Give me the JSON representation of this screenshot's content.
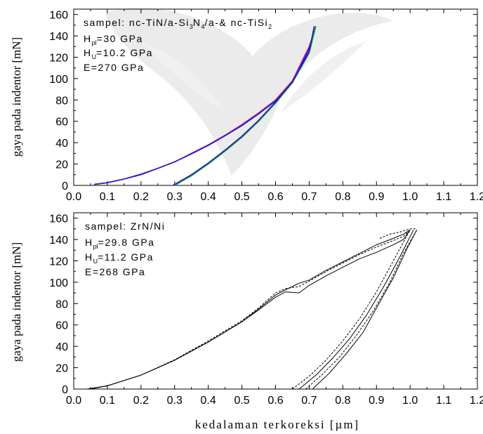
{
  "chart_data": [
    {
      "type": "line",
      "ylabel": "gaya pada indentor [mN]",
      "xlim": [
        0.0,
        1.2
      ],
      "ylim": [
        0,
        165
      ],
      "x_ticks": [
        "0.0",
        "0.1",
        "0.2",
        "0.3",
        "0.4",
        "0.5",
        "0.6",
        "0.7",
        "0.8",
        "0.9",
        "1.0",
        "1.1",
        "1.2"
      ],
      "y_ticks": [
        "0",
        "20",
        "40",
        "60",
        "80",
        "100",
        "120",
        "140",
        "160"
      ],
      "annotation": {
        "line1": "sampel: nc-TiN/a-Si",
        "sub1": "3",
        "line1b": "N",
        "sub2": "4",
        "line1c": "/a-& nc-TiSi",
        "sub3": "2",
        "h_pl_main": "H",
        "h_pl_sub": "pl",
        "h_pl_value": "=30 GPa",
        "h_u_main": "H",
        "h_u_sub": "U",
        "h_u_value": "=10.2 GPa",
        "e_value": "E=270 GPa"
      },
      "series": [
        {
          "color": "#cc2299",
          "x": [
            0.065,
            0.1,
            0.15,
            0.2,
            0.25,
            0.3,
            0.35,
            0.4,
            0.45,
            0.5,
            0.55,
            0.6,
            0.65,
            0.7,
            0.72
          ],
          "y": [
            1,
            2.5,
            6,
            10,
            16,
            22,
            30,
            38,
            47,
            57,
            68,
            80,
            98,
            130,
            149
          ]
        },
        {
          "color": "#1a1acc",
          "x": [
            0.06,
            0.1,
            0.15,
            0.2,
            0.25,
            0.3,
            0.35,
            0.4,
            0.45,
            0.5,
            0.55,
            0.6,
            0.65,
            0.7,
            0.72
          ],
          "y": [
            1,
            2.5,
            6,
            10.5,
            16,
            22,
            29.5,
            37.5,
            46.5,
            56,
            67,
            79,
            96,
            128,
            149
          ]
        },
        {
          "color": "#22aa22",
          "x": [
            0.3,
            0.35,
            0.4,
            0.45,
            0.5,
            0.55,
            0.6,
            0.65,
            0.7,
            0.72
          ],
          "y": [
            0,
            9,
            20,
            32,
            45,
            60,
            77,
            96,
            124,
            149
          ]
        },
        {
          "color": "#1a1acc",
          "x": [
            0.295,
            0.35,
            0.4,
            0.45,
            0.5,
            0.55,
            0.6,
            0.65,
            0.7,
            0.715
          ],
          "y": [
            0,
            10,
            21,
            33,
            46,
            61,
            78,
            97,
            125,
            149
          ]
        }
      ]
    },
    {
      "type": "line",
      "xlabel": "kedalaman terkoreksi [µm]",
      "ylabel": "gaya pada indentor [mN]",
      "xlim": [
        0.0,
        1.2
      ],
      "ylim": [
        0,
        165
      ],
      "x_ticks": [
        "0.0",
        "0.1",
        "0.2",
        "0.3",
        "0.4",
        "0.5",
        "0.6",
        "0.7",
        "0.8",
        "0.9",
        "1.0",
        "1.1",
        "1.2"
      ],
      "y_ticks": [
        "0",
        "20",
        "40",
        "60",
        "80",
        "100",
        "120",
        "140",
        "160"
      ],
      "annotation": {
        "line1": "sampel: ZrN/Ni",
        "h_pl_main": "H",
        "h_pl_sub": "pl",
        "h_pl_value": "=29.8 GPa",
        "h_u_main": "H",
        "h_u_sub": "U",
        "h_u_value": "=11.2 GPa",
        "e_value": "E=268 GPa"
      },
      "series": [
        {
          "color": "#000000",
          "x": [
            0.04,
            0.1,
            0.2,
            0.3,
            0.4,
            0.5,
            0.55,
            0.6,
            0.63,
            0.67,
            0.7,
            0.75,
            0.8,
            0.85,
            0.9,
            0.95,
            0.98,
            1.0
          ],
          "y": [
            0,
            3,
            13,
            27,
            44,
            63,
            74,
            86,
            91,
            90,
            97,
            106,
            114,
            122,
            128,
            135,
            140,
            149
          ]
        },
        {
          "color": "#000000",
          "x": [
            0.04,
            0.1,
            0.2,
            0.3,
            0.4,
            0.5,
            0.55,
            0.6,
            0.63,
            0.67,
            0.7,
            0.75,
            0.8,
            0.85,
            0.9,
            0.95,
            0.98,
            1.0
          ],
          "y": [
            0,
            3,
            13,
            27.5,
            45,
            64,
            76,
            90,
            94,
            96,
            101,
            110,
            118,
            126,
            133,
            139,
            143,
            149
          ]
        },
        {
          "color": "#000000",
          "x": [
            0.05,
            0.1,
            0.2,
            0.3,
            0.4,
            0.5,
            0.55,
            0.6,
            0.63,
            0.67,
            0.7,
            0.75,
            0.8,
            0.85,
            0.9,
            0.95,
            0.98,
            1.0
          ],
          "y": [
            0,
            3,
            13,
            27,
            44,
            63,
            75,
            88,
            93,
            99,
            102,
            111,
            119,
            127,
            135,
            141,
            145,
            149
          ]
        },
        {
          "color": "#000000",
          "x": [
            0.65,
            0.7,
            0.75,
            0.8,
            0.85,
            0.9,
            0.95,
            1.0
          ],
          "y": [
            0,
            12,
            27,
            45,
            66,
            91,
            120,
            149
          ]
        },
        {
          "color": "#000000",
          "x": [
            0.67,
            0.72,
            0.77,
            0.82,
            0.87,
            0.92,
            0.97,
            1.01
          ],
          "y": [
            0,
            13,
            29,
            47,
            69,
            95,
            124,
            149
          ]
        },
        {
          "color": "#000000",
          "x": [
            0.69,
            0.74,
            0.79,
            0.84,
            0.89,
            0.94,
            0.98,
            1.02
          ],
          "y": [
            0,
            14,
            30,
            50,
            73,
            100,
            127,
            149
          ]
        },
        {
          "color": "#000000",
          "x": [
            0.71,
            0.76,
            0.81,
            0.86,
            0.9,
            0.95,
            0.99,
            1.02
          ],
          "y": [
            0,
            15,
            33,
            53,
            76,
            104,
            131,
            149
          ]
        },
        {
          "color": "#000000",
          "x": [
            0.91,
            0.94,
            0.97,
            1.0,
            1.02
          ],
          "y": [
            141,
            145,
            147,
            150,
            150
          ]
        }
      ]
    }
  ]
}
